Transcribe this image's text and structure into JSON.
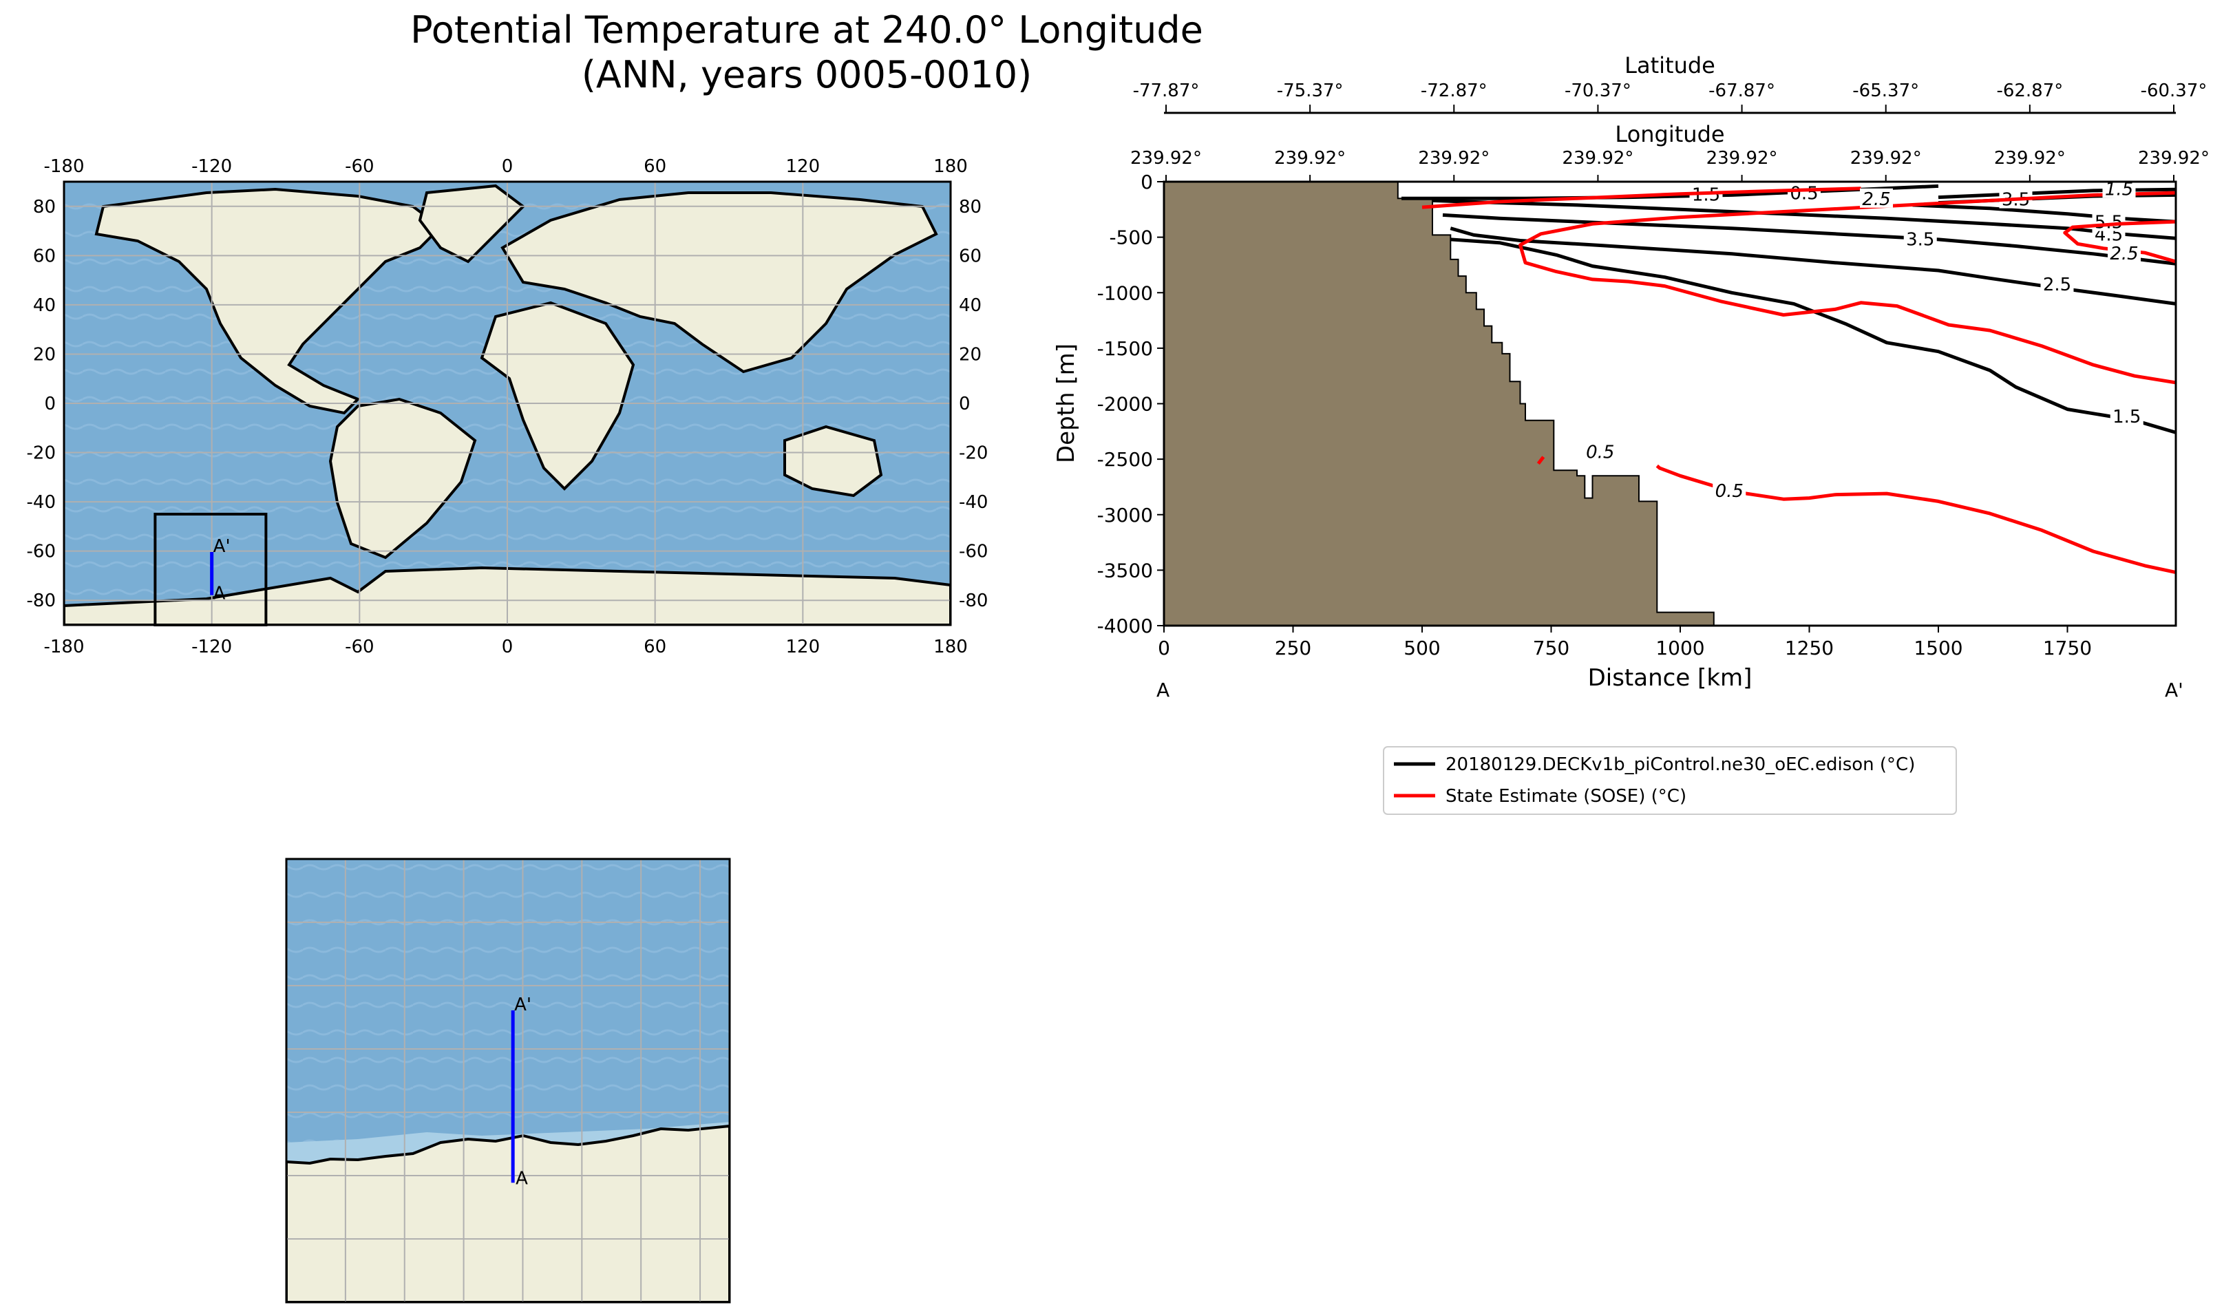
{
  "figure": {
    "title_line1": "Potential Temperature at 240.0° Longitude",
    "title_line2": "(ANN, years 0005-0010)"
  },
  "colors": {
    "ocean": "#7aaed4",
    "ocean_shelf": "#a9cfe6",
    "land": "#efeedb",
    "bathymetry": "#8c7e64",
    "model": "#000000",
    "obs": "#ff0000",
    "transect": "#0000ff",
    "grid": "#b0b0b0"
  },
  "chart_data": [
    {
      "type": "map",
      "name": "global-map",
      "xticks": [
        -180,
        -120,
        -60,
        0,
        60,
        120,
        180
      ],
      "yticks": [
        80,
        60,
        40,
        20,
        0,
        -20,
        -40,
        -60,
        -80
      ],
      "xlim": [
        -180,
        180
      ],
      "ylim": [
        -90,
        90
      ],
      "grid": true,
      "inset_box": {
        "lon": [
          -143,
          -98
        ],
        "lat": [
          -90,
          -45
        ]
      },
      "transect": {
        "start_label": "A",
        "end_label": "A'",
        "lon": -120,
        "lat_start": -77.87,
        "lat_end": -60.37
      }
    },
    {
      "type": "map",
      "name": "regional-map",
      "xlim": [
        -143,
        -98
      ],
      "ylim": [
        -90,
        -45
      ],
      "grid": true,
      "transect": {
        "start_label": "A",
        "end_label": "A'",
        "lon": -120,
        "lat_start": -77.87,
        "lat_end": -60.37
      }
    },
    {
      "type": "contour",
      "name": "transect-section",
      "xlabel": "Distance [km]",
      "ylabel": "Depth [m]",
      "xlim": [
        0,
        1960
      ],
      "ylim": [
        -4000,
        0
      ],
      "xticks": [
        0,
        250,
        500,
        750,
        1000,
        1250,
        1500,
        1750
      ],
      "yticks": [
        0,
        -500,
        -1000,
        -1500,
        -2000,
        -2500,
        -3000,
        -3500,
        -4000
      ],
      "top_axis_1_label": "Latitude",
      "latitude_ticks": [
        "-77.87°",
        "-75.37°",
        "-72.87°",
        "-70.37°",
        "-67.87°",
        "-65.37°",
        "-62.87°",
        "-60.37°"
      ],
      "top_axis_2_label": "Longitude",
      "longitude_ticks": [
        "239.92°",
        "239.92°",
        "239.92°",
        "239.92°",
        "239.92°",
        "239.92°",
        "239.92°",
        "239.92°"
      ],
      "corner_left": "A",
      "corner_right": "A'",
      "bathymetry": [
        [
          0,
          0
        ],
        [
          453,
          0
        ],
        [
          453,
          -150
        ],
        [
          520,
          -150
        ],
        [
          520,
          -480
        ],
        [
          555,
          -480
        ],
        [
          555,
          -700
        ],
        [
          570,
          -700
        ],
        [
          570,
          -850
        ],
        [
          585,
          -850
        ],
        [
          585,
          -1000
        ],
        [
          605,
          -1000
        ],
        [
          605,
          -1150
        ],
        [
          620,
          -1150
        ],
        [
          620,
          -1300
        ],
        [
          635,
          -1300
        ],
        [
          635,
          -1450
        ],
        [
          655,
          -1450
        ],
        [
          655,
          -1550
        ],
        [
          670,
          -1550
        ],
        [
          670,
          -1800
        ],
        [
          690,
          -1800
        ],
        [
          690,
          -2000
        ],
        [
          700,
          -2000
        ],
        [
          700,
          -2150
        ],
        [
          755,
          -2150
        ],
        [
          755,
          -2600
        ],
        [
          800,
          -2600
        ],
        [
          800,
          -2650
        ],
        [
          815,
          -2650
        ],
        [
          815,
          -2850
        ],
        [
          830,
          -2850
        ],
        [
          830,
          -2650
        ],
        [
          920,
          -2650
        ],
        [
          920,
          -2880
        ],
        [
          955,
          -2880
        ],
        [
          955,
          -3880
        ],
        [
          1065,
          -3880
        ],
        [
          1065,
          -4000
        ],
        [
          0,
          -4000
        ]
      ],
      "model_contours": [
        {
          "level": "1.5",
          "points": [
            [
              1960,
              -2260
            ],
            [
              1880,
              -2150
            ],
            [
              1750,
              -2050
            ],
            [
              1650,
              -1850
            ],
            [
              1600,
              -1700
            ],
            [
              1500,
              -1530
            ],
            [
              1400,
              -1450
            ],
            [
              1320,
              -1280
            ],
            [
              1220,
              -1100
            ],
            [
              1100,
              -1000
            ],
            [
              970,
              -860
            ],
            [
              830,
              -760
            ],
            [
              760,
              -660
            ],
            [
              650,
              -550
            ],
            [
              555,
              -520
            ]
          ],
          "label_at": [
            1865,
            -2120
          ]
        },
        {
          "level": "2.5",
          "points": [
            [
              1960,
              -1100
            ],
            [
              1850,
              -1030
            ],
            [
              1720,
              -950
            ],
            [
              1600,
              -870
            ],
            [
              1500,
              -800
            ],
            [
              1300,
              -730
            ],
            [
              1100,
              -650
            ],
            [
              850,
              -575
            ],
            [
              690,
              -530
            ],
            [
              600,
              -480
            ],
            [
              555,
              -420
            ]
          ],
          "label_at": [
            1730,
            -930
          ]
        },
        {
          "level": "3.5",
          "points": [
            [
              1960,
              -740
            ],
            [
              1800,
              -650
            ],
            [
              1650,
              -580
            ],
            [
              1500,
              -520
            ],
            [
              1300,
              -470
            ],
            [
              1100,
              -420
            ],
            [
              850,
              -370
            ],
            [
              650,
              -330
            ],
            [
              540,
              -300
            ]
          ],
          "label_at": [
            1465,
            -525
          ]
        },
        {
          "level": "4.5",
          "points": [
            [
              1960,
              -510
            ],
            [
              1850,
              -470
            ],
            [
              1750,
              -420
            ],
            [
              1600,
              -380
            ],
            [
              1400,
              -330
            ],
            [
              1200,
              -290
            ],
            [
              1000,
              -250
            ],
            [
              800,
              -210
            ],
            [
              580,
              -180
            ],
            [
              520,
              -170
            ]
          ],
          "label_at": [
            1830,
            -480
          ]
        },
        {
          "level": "5.5",
          "points": [
            [
              1960,
              -360
            ],
            [
              1850,
              -330
            ],
            [
              1750,
              -290
            ],
            [
              1600,
              -240
            ],
            [
              1450,
              -210
            ]
          ],
          "label_at": [
            1830,
            -370
          ]
        },
        {
          "level": "0.5",
          "points": [
            [
              460,
              -150
            ],
            [
              700,
              -150
            ],
            [
              900,
              -140
            ],
            [
              1100,
              -120
            ],
            [
              1300,
              -80
            ],
            [
              1500,
              -40
            ]
          ],
          "label_at": [
            1240,
            -110
          ]
        },
        {
          "level": "1.5",
          "points": [
            [
              1500,
              -140
            ],
            [
              1650,
              -110
            ],
            [
              1800,
              -80
            ],
            [
              1960,
              -70
            ]
          ],
          "label_at": [
            1050,
            -120
          ]
        },
        {
          "level": "3.5",
          "points": [
            [
              1500,
              -190
            ],
            [
              1650,
              -160
            ],
            [
              1800,
              -130
            ],
            [
              1960,
              -120
            ]
          ],
          "label_at": [
            1650,
            -165
          ]
        }
      ],
      "obs_contours": [
        {
          "level": "2.5",
          "points": [
            [
              1960,
              -720
            ],
            [
              1900,
              -640
            ],
            [
              1820,
              -600
            ],
            [
              1770,
              -560
            ],
            [
              1745,
              -460
            ],
            [
              1760,
              -410
            ],
            [
              1850,
              -380
            ],
            [
              1960,
              -360
            ]
          ],
          "label_at": [
            1860,
            -650
          ]
        },
        {
          "level": "1.5",
          "points": [
            [
              1960,
              -1810
            ],
            [
              1880,
              -1750
            ],
            [
              1800,
              -1650
            ],
            [
              1700,
              -1480
            ],
            [
              1600,
              -1340
            ],
            [
              1520,
              -1290
            ],
            [
              1420,
              -1120
            ],
            [
              1350,
              -1090
            ],
            [
              1300,
              -1150
            ],
            [
              1200,
              -1200
            ],
            [
              1080,
              -1080
            ],
            [
              970,
              -940
            ],
            [
              900,
              -900
            ],
            [
              830,
              -880
            ],
            [
              760,
              -810
            ],
            [
              700,
              -730
            ],
            [
              690,
              -570
            ],
            [
              730,
              -470
            ],
            [
              830,
              -380
            ],
            [
              1000,
              -320
            ],
            [
              1200,
              -270
            ],
            [
              1400,
              -220
            ],
            [
              1600,
              -170
            ],
            [
              1800,
              -120
            ],
            [
              1960,
              -100
            ]
          ],
          "label_at": [
            1850,
            -70
          ]
        },
        {
          "level": "2.5",
          "points": [
            [
              500,
              -230
            ],
            [
              650,
              -180
            ],
            [
              800,
              -150
            ],
            [
              1000,
              -110
            ],
            [
              1200,
              -80
            ],
            [
              1350,
              -60
            ]
          ],
          "label_at": [
            1380,
            -160
          ]
        },
        {
          "level": "0.5",
          "points": [
            [
              1960,
              -3520
            ],
            [
              1900,
              -3460
            ],
            [
              1800,
              -3330
            ],
            [
              1700,
              -3140
            ],
            [
              1600,
              -2990
            ],
            [
              1500,
              -2880
            ],
            [
              1400,
              -2810
            ],
            [
              1300,
              -2820
            ],
            [
              1250,
              -2850
            ],
            [
              1200,
              -2860
            ],
            [
              1100,
              -2790
            ],
            [
              1000,
              -2650
            ],
            [
              960,
              -2580
            ],
            [
              955,
              -2560
            ]
          ],
          "label_at": [
            1095,
            -2790
          ]
        },
        {
          "level": "0.5",
          "points": [
            [
              725,
              -2540
            ],
            [
              735,
              -2480
            ]
          ],
          "label_at": [
            845,
            -2440
          ]
        }
      ],
      "legend": [
        {
          "label": "20180129.DECKv1b_piControl.ne30_oEC.edison (°C)",
          "color": "#000000"
        },
        {
          "label": "State Estimate (SOSE) (°C)",
          "color": "#ff0000"
        }
      ]
    }
  ]
}
